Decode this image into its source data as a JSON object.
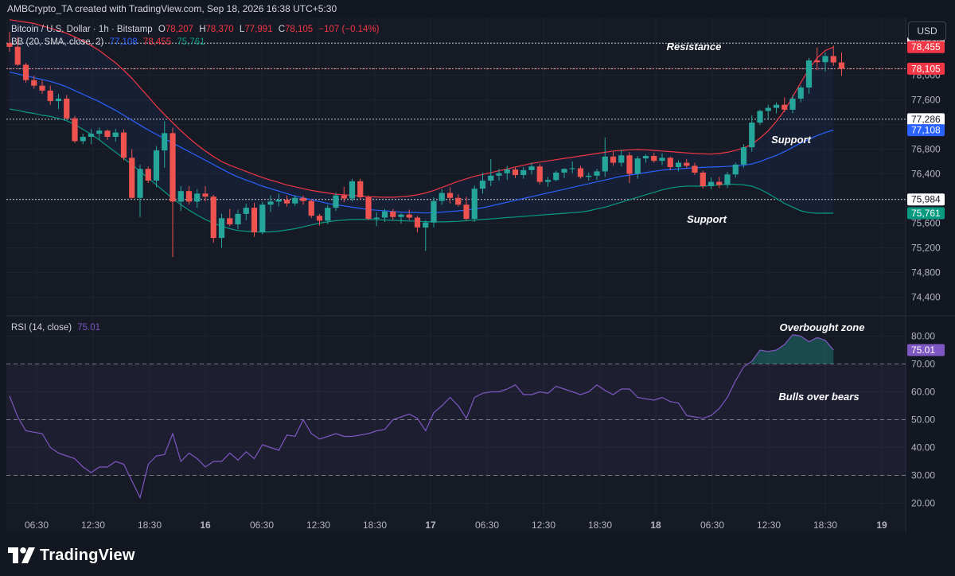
{
  "credit": "AMBCrypto_TA created with TradingView.com, Sep 18, 2026 16:38 UTC+5:30",
  "currency_button": "USD",
  "logo_text": "TradingView",
  "legend": {
    "symbol": "Bitcoin / U.S. Dollar · 1h · Bitstamp",
    "o_label": "O",
    "o_value": "78,207",
    "h_label": "H",
    "h_value": "78,370",
    "l_label": "L",
    "l_value": "77,991",
    "c_label": "C",
    "c_value": "78,105",
    "change": "−107 (−0.14%)",
    "bb_label": "BB (20, SMA, close, 2)",
    "bb_basis": "77,108",
    "bb_upper": "78,455",
    "bb_lower": "75,761",
    "rsi_label": "RSI (14, close)",
    "rsi_value": "75.01"
  },
  "annotations": {
    "resistance": "Resistance",
    "support_upper": "Support",
    "support_lower": "Support",
    "overbought": "Overbought zone",
    "bulls": "Bulls over bears"
  },
  "price_tags": [
    {
      "text": "78,519",
      "value": 78519,
      "bg": "#ffffff",
      "fg": "#131722"
    },
    {
      "text": "78,455",
      "value": 78455,
      "bg": "#f23645",
      "fg": "#ffffff"
    },
    {
      "text": "78,105",
      "value": 78105,
      "bg": "#f23645",
      "fg": "#ffffff"
    },
    {
      "text": "77,286",
      "value": 77286,
      "bg": "#ffffff",
      "fg": "#131722"
    },
    {
      "text": "77,108",
      "value": 77108,
      "bg": "#2962ff",
      "fg": "#ffffff"
    },
    {
      "text": "75,984",
      "value": 75984,
      "bg": "#ffffff",
      "fg": "#131722"
    },
    {
      "text": "75,761",
      "value": 75761,
      "bg": "#089981",
      "fg": "#ffffff"
    }
  ],
  "rsi_tag": {
    "text": "75.01",
    "value": 75.01,
    "bg": "#7e57c2",
    "fg": "#ffffff"
  },
  "colors": {
    "up": "#26a69a",
    "down": "#ef5350",
    "bb_basis": "#2962ff",
    "bb_upper": "#f23645",
    "bb_lower": "#089981",
    "rsi_line": "#7e57c2",
    "grid": "#1e222d"
  },
  "chart_data": [
    {
      "type": "candlestick",
      "title": "Bitcoin / U.S. Dollar · 1h · Bitstamp",
      "ylim": [
        74200,
        79200
      ],
      "y_ticks": [
        "74,400",
        "74,800",
        "75,200",
        "75,600",
        "76,000",
        "76,400",
        "76,800",
        "77,200",
        "77,600",
        "78,000"
      ],
      "x_ticks": [
        "06:30",
        "12:30",
        "18:30",
        "16",
        "06:30",
        "12:30",
        "18:30",
        "17",
        "06:30",
        "12:30",
        "18:30",
        "18",
        "06:30",
        "12:30",
        "18:30",
        "19"
      ],
      "horizontal_levels": [
        78519,
        78105,
        77286,
        75984
      ],
      "candles": [
        [
          78520,
          78700,
          78380,
          78460
        ],
        [
          78460,
          78620,
          78150,
          78170
        ],
        [
          78170,
          78200,
          77880,
          77920
        ],
        [
          77920,
          77990,
          77780,
          77830
        ],
        [
          77830,
          77920,
          77700,
          77750
        ],
        [
          77750,
          77830,
          77520,
          77580
        ],
        [
          77580,
          77700,
          77450,
          77620
        ],
        [
          77620,
          77680,
          77280,
          77300
        ],
        [
          77300,
          77340,
          76900,
          76930
        ],
        [
          76930,
          77050,
          76880,
          77000
        ],
        [
          77000,
          77130,
          76880,
          77050
        ],
        [
          77050,
          77150,
          76950,
          77100
        ],
        [
          77100,
          77120,
          76950,
          77000
        ],
        [
          77000,
          77130,
          76920,
          77070
        ],
        [
          77070,
          77120,
          76620,
          76660
        ],
        [
          76660,
          76800,
          76000,
          76010
        ],
        [
          76010,
          76550,
          75700,
          76480
        ],
        [
          76480,
          76520,
          76250,
          76290
        ],
        [
          76290,
          76850,
          76180,
          76780
        ],
        [
          76780,
          77250,
          76500,
          77060
        ],
        [
          77060,
          77150,
          75050,
          75950
        ],
        [
          75950,
          76200,
          75800,
          76120
        ],
        [
          76120,
          76200,
          75900,
          75950
        ],
        [
          75950,
          76150,
          75850,
          76080
        ],
        [
          76080,
          76200,
          75950,
          76030
        ],
        [
          76030,
          76060,
          75280,
          75360
        ],
        [
          75360,
          75750,
          75200,
          75680
        ],
        [
          75680,
          75830,
          75550,
          75580
        ],
        [
          75580,
          75820,
          75500,
          75750
        ],
        [
          75750,
          75920,
          75650,
          75850
        ],
        [
          75850,
          75930,
          75380,
          75450
        ],
        [
          75450,
          75950,
          75420,
          75900
        ],
        [
          75900,
          76050,
          75780,
          75950
        ],
        [
          75950,
          76080,
          75870,
          75980
        ],
        [
          75980,
          76050,
          75870,
          75920
        ],
        [
          75920,
          76050,
          75880,
          76010
        ],
        [
          76010,
          76050,
          75900,
          75960
        ],
        [
          75960,
          75990,
          75680,
          75720
        ],
        [
          75720,
          75750,
          75560,
          75640
        ],
        [
          75640,
          75900,
          75580,
          75850
        ],
        [
          75850,
          76100,
          75800,
          76050
        ],
        [
          76050,
          76190,
          75940,
          76000
        ],
        [
          76000,
          76320,
          75950,
          76280
        ],
        [
          76280,
          76320,
          75980,
          76020
        ],
        [
          76020,
          76050,
          75650,
          75670
        ],
        [
          75670,
          75780,
          75550,
          75690
        ],
        [
          75690,
          75830,
          75620,
          75790
        ],
        [
          75790,
          75830,
          75650,
          75700
        ],
        [
          75700,
          75760,
          75590,
          75740
        ],
        [
          75740,
          75820,
          75650,
          75690
        ],
        [
          75690,
          75720,
          75450,
          75530
        ],
        [
          75530,
          75650,
          75150,
          75610
        ],
        [
          75610,
          76020,
          75530,
          75960
        ],
        [
          75960,
          76150,
          75900,
          76090
        ],
        [
          76090,
          76180,
          75920,
          76010
        ],
        [
          76010,
          76070,
          75870,
          75900
        ],
        [
          75900,
          76030,
          75640,
          75670
        ],
        [
          75670,
          76210,
          75620,
          76160
        ],
        [
          76160,
          76420,
          76080,
          76290
        ],
        [
          76290,
          76640,
          76200,
          76370
        ],
        [
          76370,
          76480,
          76290,
          76410
        ],
        [
          76410,
          76530,
          76300,
          76470
        ],
        [
          76470,
          76500,
          76330,
          76380
        ],
        [
          76380,
          76510,
          76320,
          76460
        ],
        [
          76460,
          76580,
          76390,
          76520
        ],
        [
          76520,
          76560,
          76230,
          76270
        ],
        [
          76270,
          76350,
          76190,
          76300
        ],
        [
          76300,
          76450,
          76280,
          76420
        ],
        [
          76420,
          76490,
          76330,
          76480
        ],
        [
          76480,
          76600,
          76410,
          76490
        ],
        [
          76490,
          76530,
          76320,
          76350
        ],
        [
          76350,
          76420,
          76290,
          76370
        ],
        [
          76370,
          76480,
          76300,
          76440
        ],
        [
          76440,
          76990,
          76350,
          76680
        ],
        [
          76680,
          76760,
          76530,
          76580
        ],
        [
          76580,
          76790,
          76520,
          76700
        ],
        [
          76700,
          76750,
          76250,
          76400
        ],
        [
          76400,
          76690,
          76320,
          76650
        ],
        [
          76650,
          76720,
          76580,
          76690
        ],
        [
          76690,
          76740,
          76580,
          76610
        ],
        [
          76610,
          76730,
          76540,
          76660
        ],
        [
          76660,
          76680,
          76460,
          76510
        ],
        [
          76510,
          76620,
          76440,
          76580
        ],
        [
          76580,
          76640,
          76490,
          76530
        ],
        [
          76530,
          76580,
          76380,
          76420
        ],
        [
          76420,
          76450,
          76160,
          76200
        ],
        [
          76200,
          76340,
          76150,
          76270
        ],
        [
          76270,
          76350,
          76170,
          76220
        ],
        [
          76220,
          76430,
          76170,
          76390
        ],
        [
          76390,
          76580,
          76340,
          76550
        ],
        [
          76550,
          76880,
          76500,
          76830
        ],
        [
          76830,
          77350,
          76760,
          77230
        ],
        [
          77230,
          77440,
          77190,
          77420
        ],
        [
          77420,
          77520,
          77290,
          77470
        ],
        [
          77470,
          77560,
          77380,
          77520
        ],
        [
          77520,
          77640,
          77400,
          77440
        ],
        [
          77440,
          77680,
          77380,
          77620
        ],
        [
          77620,
          77830,
          77560,
          77800
        ],
        [
          77800,
          78280,
          77700,
          78240
        ],
        [
          78240,
          78450,
          78080,
          78210
        ],
        [
          78210,
          78370,
          78060,
          78310
        ],
        [
          78310,
          78480,
          78150,
          78207
        ],
        [
          78207,
          78370,
          77991,
          78105
        ]
      ],
      "bb_basis": [
        78050,
        78020,
        77990,
        77960,
        77930,
        77900,
        77860,
        77810,
        77750,
        77690,
        77630,
        77570,
        77500,
        77430,
        77350,
        77270,
        77190,
        77110,
        77040,
        76970,
        76900,
        76830,
        76760,
        76690,
        76620,
        76550,
        76480,
        76410,
        76350,
        76300,
        76250,
        76200,
        76160,
        76120,
        76080,
        76040,
        76010,
        75980,
        75950,
        75920,
        75900,
        75880,
        75860,
        75840,
        75820,
        75810,
        75800,
        75790,
        75780,
        75775,
        75770,
        75765,
        75770,
        75780,
        75790,
        75800,
        75810,
        75830,
        75850,
        75880,
        75910,
        75940,
        75970,
        76000,
        76030,
        76060,
        76090,
        76120,
        76150,
        76180,
        76210,
        76240,
        76270,
        76300,
        76330,
        76360,
        76380,
        76400,
        76420,
        76440,
        76460,
        76470,
        76480,
        76490,
        76500,
        76505,
        76510,
        76515,
        76520,
        76530,
        76540,
        76560,
        76600,
        76650,
        76700,
        76760,
        76830,
        76900,
        76960,
        77020,
        77070,
        77108
      ],
      "bb_upper": [
        78900,
        78880,
        78860,
        78840,
        78800,
        78760,
        78720,
        78680,
        78620,
        78560,
        78480,
        78400,
        78300,
        78200,
        78080,
        77950,
        77800,
        77650,
        77500,
        77360,
        77230,
        77100,
        76980,
        76870,
        76770,
        76680,
        76600,
        76540,
        76490,
        76440,
        76390,
        76340,
        76300,
        76260,
        76220,
        76190,
        76160,
        76130,
        76110,
        76090,
        76070,
        76060,
        76050,
        76040,
        76030,
        76025,
        76020,
        76020,
        76030,
        76040,
        76060,
        76090,
        76130,
        76180,
        76230,
        76280,
        76320,
        76360,
        76390,
        76420,
        76450,
        76480,
        76510,
        76540,
        76570,
        76590,
        76610,
        76630,
        76650,
        76670,
        76690,
        76710,
        76730,
        76750,
        76770,
        76780,
        76790,
        76795,
        76790,
        76780,
        76770,
        76760,
        76750,
        76740,
        76730,
        76725,
        76720,
        76730,
        76750,
        76780,
        76820,
        76880,
        76980,
        77100,
        77250,
        77430,
        77650,
        77880,
        78100,
        78280,
        78400,
        78455
      ],
      "bb_lower": [
        77450,
        77430,
        77400,
        77380,
        77350,
        77330,
        77300,
        77260,
        77200,
        77120,
        77040,
        76950,
        76850,
        76750,
        76650,
        76550,
        76440,
        76330,
        76220,
        76110,
        76000,
        75900,
        75810,
        75730,
        75660,
        75600,
        75550,
        75510,
        75480,
        75470,
        75460,
        75455,
        75460,
        75470,
        75490,
        75510,
        75540,
        75570,
        75600,
        75620,
        75640,
        75650,
        75660,
        75660,
        75660,
        75655,
        75650,
        75645,
        75640,
        75635,
        75630,
        75625,
        75620,
        75620,
        75625,
        75630,
        75640,
        75650,
        75660,
        75670,
        75680,
        75690,
        75700,
        75710,
        75720,
        75730,
        75740,
        75750,
        75760,
        75770,
        75780,
        75800,
        75830,
        75860,
        75900,
        75940,
        75980,
        76020,
        76060,
        76100,
        76140,
        76170,
        76190,
        76200,
        76200,
        76200,
        76210,
        76220,
        76230,
        76230,
        76220,
        76200,
        76150,
        76080,
        76000,
        75920,
        75860,
        75800,
        75770,
        75760,
        75762,
        75761
      ]
    },
    {
      "type": "line",
      "title": "RSI (14, close)",
      "ylim": [
        15,
        86
      ],
      "y_ticks": [
        "20.00",
        "30.00",
        "40.00",
        "50.00",
        "60.00",
        "70.00",
        "80.00"
      ],
      "bands": [
        30,
        50,
        70
      ],
      "overbought_threshold": 70,
      "values": [
        58.5,
        51.0,
        46.0,
        45.5,
        45.0,
        40.0,
        38.0,
        37.0,
        36.0,
        33.0,
        31.0,
        33.0,
        33.0,
        35.0,
        34.0,
        28.0,
        22.0,
        34.0,
        37.0,
        37.5,
        45.0,
        35.0,
        38.0,
        36.0,
        33.0,
        35.0,
        35.0,
        38.0,
        35.5,
        38.5,
        36.0,
        41.0,
        40.0,
        39.0,
        44.5,
        44.0,
        50.0,
        45.0,
        43.0,
        44.0,
        45.0,
        44.0,
        44.0,
        44.5,
        45.0,
        46.0,
        46.5,
        50.0,
        51.0,
        52.0,
        50.5,
        46.0,
        52.5,
        55.0,
        58.0,
        55.0,
        50.5,
        58.0,
        59.5,
        60.0,
        60.0,
        61.0,
        62.5,
        59.0,
        59.0,
        60.0,
        59.5,
        62.0,
        61.0,
        60.0,
        59.0,
        60.0,
        62.5,
        60.5,
        59.0,
        61.0,
        61.0,
        58.0,
        57.5,
        57.0,
        58.0,
        56.5,
        56.0,
        51.5,
        51.0,
        50.5,
        51.5,
        54.0,
        58.0,
        64.0,
        69.0,
        71.0,
        75.0,
        74.5,
        75.0,
        77.0,
        80.5,
        80.0,
        78.0,
        79.5,
        78.5,
        75.01
      ]
    }
  ]
}
